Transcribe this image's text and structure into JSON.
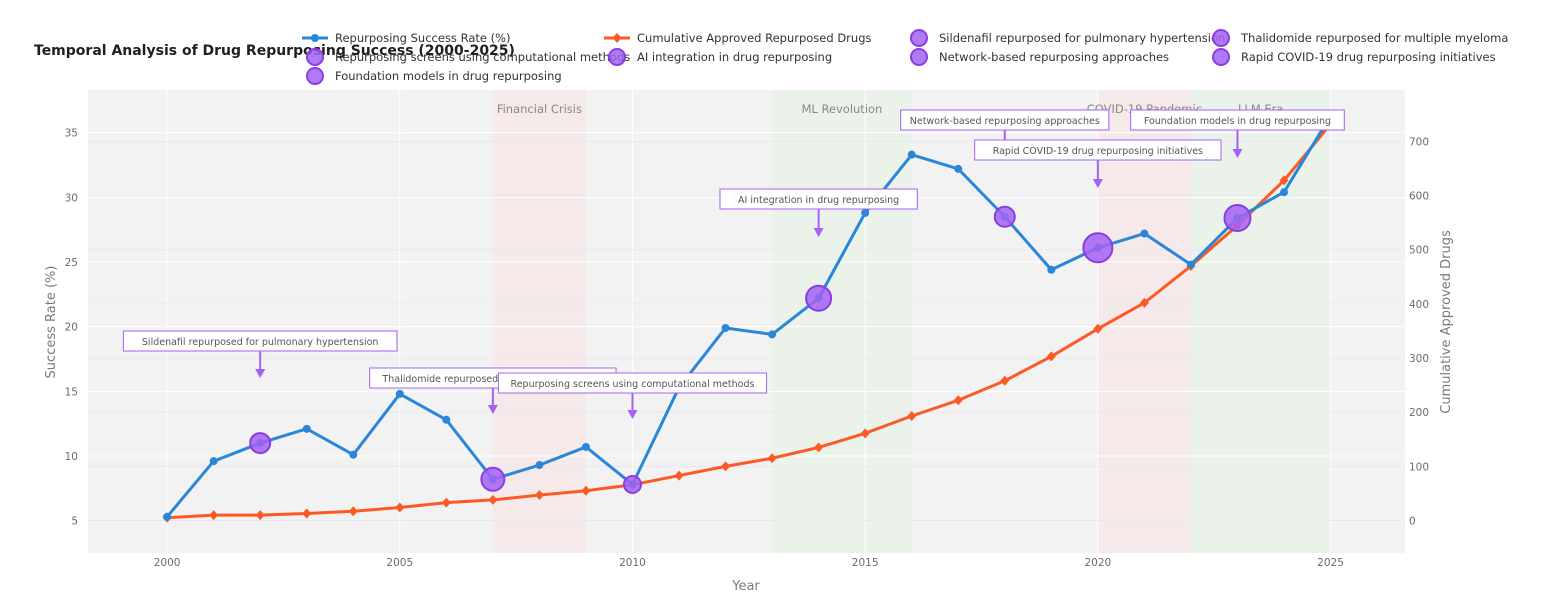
{
  "colors": {
    "success": "#2a87d8",
    "cumulative": "#fb5a26",
    "milestone": "#a461f5",
    "milestone_stroke": "#8a3ee0",
    "plot_bg": "#f2f2f2"
  },
  "chart_data": {
    "type": "line",
    "title": "Temporal Analysis of Drug Repurposing Success (2000-2025)",
    "xlabel": "Year",
    "ylabel": "Success Rate (%)",
    "y2label": "Cumulative Approved Drugs",
    "xlim": [
      1998.3,
      2026.6
    ],
    "ylim": [
      2.5,
      38.3
    ],
    "y2lim": [
      -60,
      795
    ],
    "x_ticks": [
      2000,
      2005,
      2010,
      2015,
      2020,
      2025
    ],
    "y_ticks": [
      5,
      10,
      15,
      20,
      25,
      30,
      35
    ],
    "y2_ticks": [
      0,
      100,
      200,
      300,
      400,
      500,
      600,
      700
    ],
    "legend_position": "top",
    "x": [
      2000,
      2001,
      2002,
      2003,
      2004,
      2005,
      2006,
      2007,
      2008,
      2009,
      2010,
      2011,
      2012,
      2013,
      2014,
      2015,
      2016,
      2017,
      2018,
      2019,
      2020,
      2021,
      2022,
      2023,
      2024,
      2025
    ],
    "series": [
      {
        "name": "Repurposing Success Rate (%)",
        "axis": "y",
        "values": [
          5.3,
          9.6,
          11.0,
          12.1,
          10.1,
          14.8,
          12.8,
          8.2,
          9.3,
          10.7,
          7.8,
          15.3,
          19.9,
          19.4,
          22.2,
          28.8,
          33.3,
          32.2,
          28.5,
          24.4,
          26.1,
          27.2,
          24.8,
          28.4,
          30.4,
          36.3
        ]
      },
      {
        "name": "Cumulative Approved Repurposed Drugs",
        "axis": "y2",
        "values": [
          5,
          10,
          10,
          13,
          17,
          24,
          33,
          38,
          47,
          55,
          66,
          83,
          100,
          115,
          135,
          161,
          193,
          222,
          258,
          303,
          354,
          402,
          470,
          545,
          628,
          732
        ]
      }
    ],
    "milestones": [
      {
        "name": "Sildenafil repurposed for pulmonary hypertension",
        "x": 2002,
        "y": 11.0,
        "size": 1.0
      },
      {
        "name": "Thalidomide repurposed for multiple myeloma",
        "x": 2007,
        "y": 8.2,
        "size": 1.15
      },
      {
        "name": "Repurposing screens using computational methods",
        "x": 2010,
        "y": 7.8,
        "size": 0.85
      },
      {
        "name": "AI integration in drug repurposing",
        "x": 2014,
        "y": 22.2,
        "size": 1.25
      },
      {
        "name": "Network-based repurposing approaches",
        "x": 2018,
        "y": 28.5,
        "size": 1.0
      },
      {
        "name": "Rapid COVID-19 drug repurposing initiatives",
        "x": 2020,
        "y": 26.1,
        "size": 1.45
      },
      {
        "name": "Foundation models in drug repurposing",
        "x": 2023,
        "y": 28.4,
        "size": 1.3
      }
    ],
    "periods": [
      {
        "label": "Financial Crisis",
        "x0": 2007,
        "x1": 2009,
        "color": "#f9e1e1"
      },
      {
        "label": "ML Revolution",
        "x0": 2013,
        "x1": 2016,
        "color": "#e4f3e4"
      },
      {
        "label": "COVID-19 Pandemic",
        "x0": 2020,
        "x1": 2022,
        "color": "#f9e1e1"
      },
      {
        "label": "LLM Era",
        "x0": 2022,
        "x1": 2025,
        "color": "#e4f3e4"
      }
    ]
  }
}
